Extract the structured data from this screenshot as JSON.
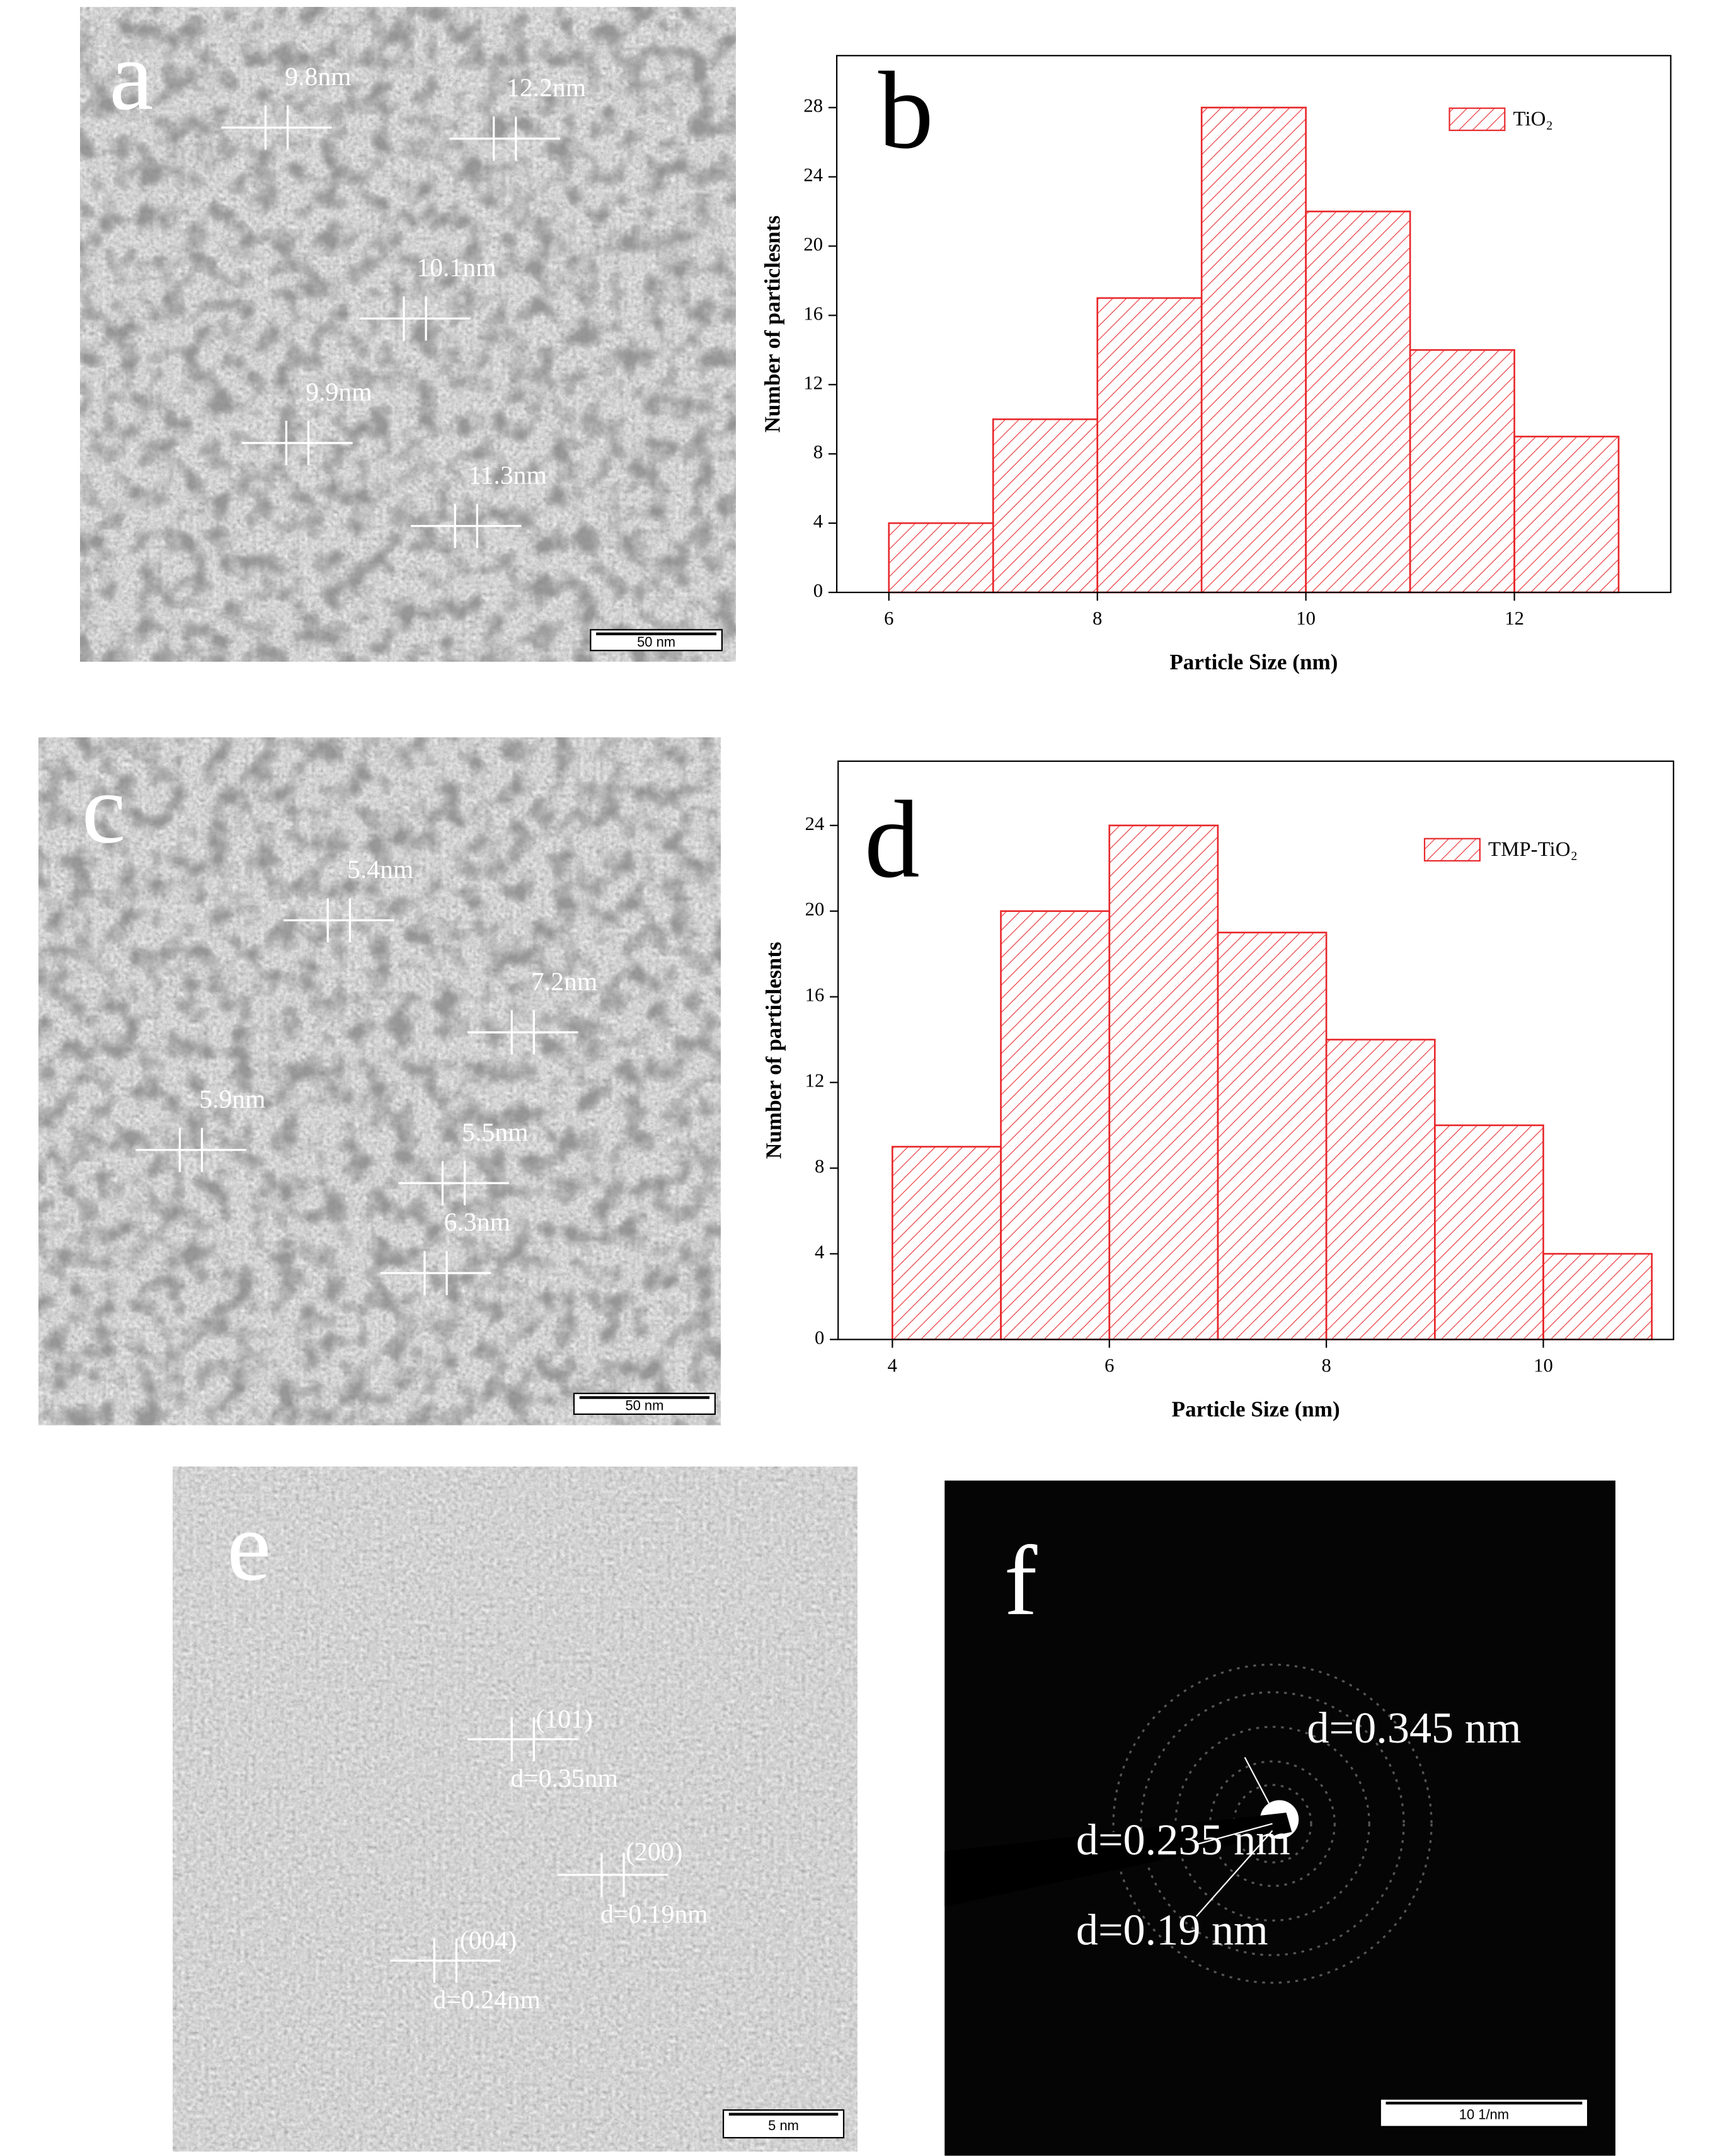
{
  "chart_data": [
    {
      "type": "histogram",
      "panel": "b",
      "xlabel": "Particle Size (nm)",
      "ylabel": "Number of particlesnts",
      "bins": [
        6,
        7,
        8,
        9,
        10,
        11,
        12,
        13
      ],
      "series": [
        {
          "name": "TiO₂",
          "color": "#e8282b",
          "values": [
            4,
            10,
            17,
            28,
            22,
            14,
            9
          ]
        }
      ],
      "xlim": [
        5.5,
        13.5
      ],
      "xticks": [
        6,
        8,
        10,
        12
      ],
      "ylim": [
        0,
        31
      ],
      "yticks": [
        0,
        4,
        8,
        12,
        16,
        20,
        24,
        28
      ],
      "legend": "upper right"
    },
    {
      "type": "histogram",
      "panel": "d",
      "xlabel": "Particle Size (nm)",
      "ylabel": "Number of particlesnts",
      "bins": [
        4,
        5,
        6,
        7,
        8,
        9,
        10,
        11
      ],
      "series": [
        {
          "name": "TMP-TiO₂",
          "color": "#e8282b",
          "values": [
            9,
            20,
            24,
            19,
            14,
            10,
            4
          ]
        }
      ],
      "xlim": [
        3.5,
        11.2
      ],
      "xticks": [
        4,
        6,
        8,
        10
      ],
      "ylim": [
        0,
        27
      ],
      "yticks": [
        0,
        4,
        8,
        12,
        16,
        20,
        24
      ],
      "legend": "upper right"
    }
  ],
  "images": [
    {
      "panel": "a",
      "scale_bar": "50 nm",
      "annotations": [
        "9.8nm",
        "12.2nm",
        "10.1nm",
        "9.9nm",
        "11.3nm"
      ]
    },
    {
      "panel": "c",
      "scale_bar": "50 nm",
      "annotations": [
        "5.4nm",
        "7.2nm",
        "5.9nm",
        "5.5nm",
        "6.3nm"
      ]
    },
    {
      "panel": "e",
      "scale_bar": "5 nm",
      "annotations": [
        "(101)",
        "d=0.35nm",
        "(200)",
        "d=0.19nm",
        "(004)",
        "d=0.24nm"
      ]
    },
    {
      "panel": "f",
      "scale_bar": "10 1/nm",
      "annotations": [
        "d=0.345 nm",
        "d=0.235 nm",
        "d=0.19 nm"
      ]
    }
  ]
}
